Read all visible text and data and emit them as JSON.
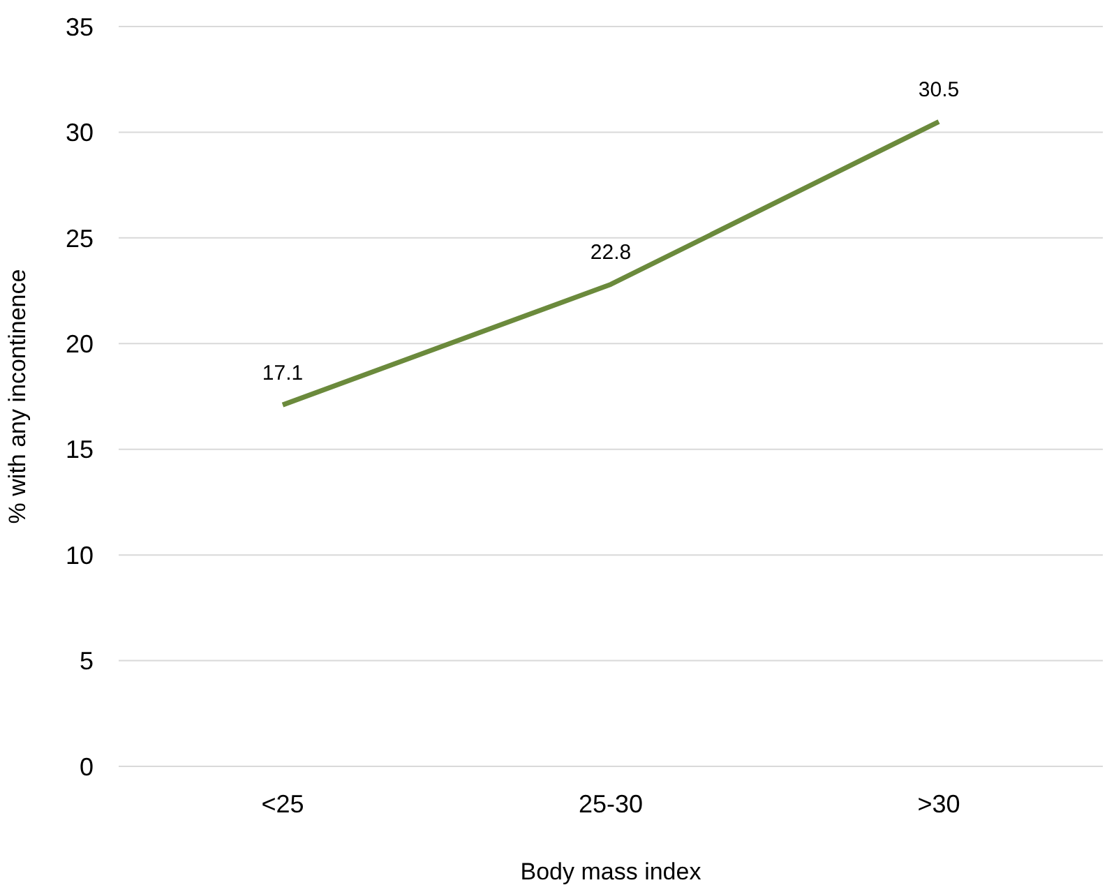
{
  "chart_data": {
    "type": "line",
    "xlabel": "Body mass index",
    "ylabel": "% with any incontinence",
    "categories": [
      "<25",
      "25-30",
      ">30"
    ],
    "series": [
      {
        "color": "#6b8a3c",
        "values": [
          17.1,
          22.8,
          30.5
        ]
      }
    ],
    "ylim": [
      0,
      35
    ],
    "yticks": [
      0,
      5,
      10,
      15,
      20,
      25,
      30,
      35
    ],
    "grid": "y",
    "data_labels": true,
    "marker": "none",
    "legend": false
  }
}
